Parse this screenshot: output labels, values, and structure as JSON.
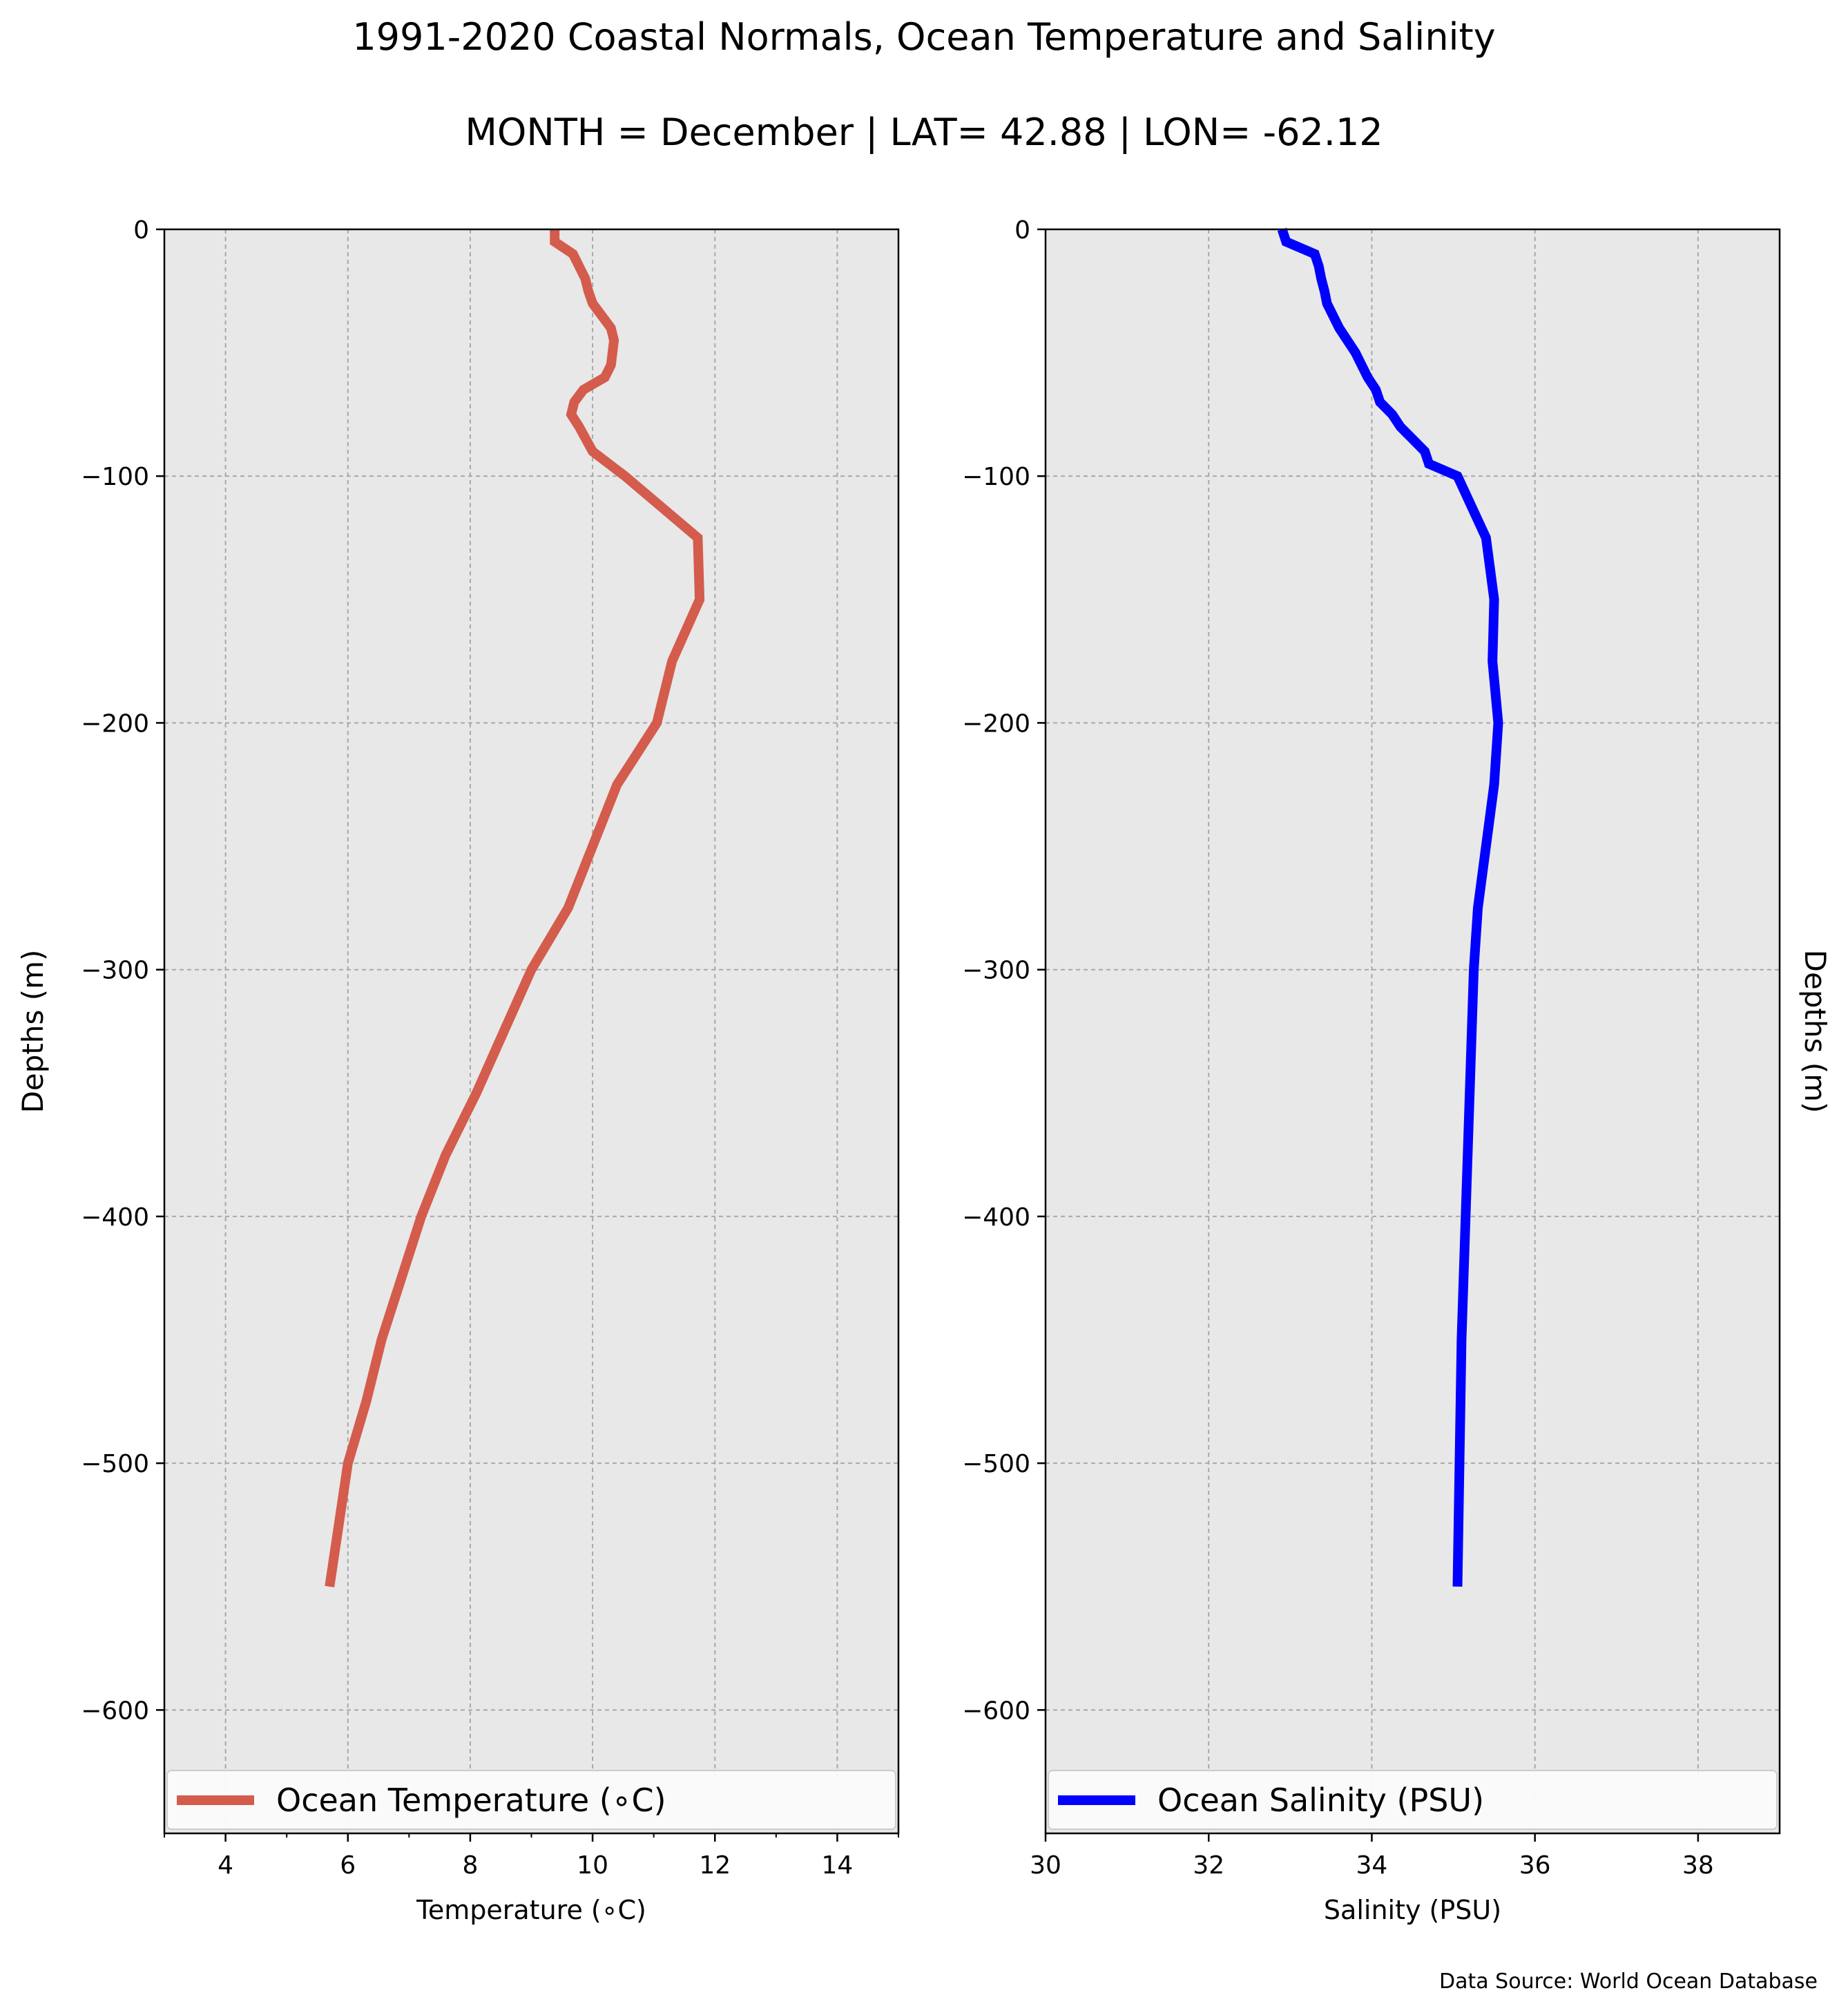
{
  "title": "1991-2020 Coastal Normals, Ocean Temperature and Salinity",
  "subtitle": "MONTH = December | LAT= 42.88 | LON= -62.12",
  "source": "Data Source: World Ocean Database",
  "chart_data": [
    {
      "type": "line",
      "xlabel": "Temperature (∘C)",
      "ylabel": "Depths (m)",
      "ylabel_side": "left",
      "xlim": [
        3,
        15
      ],
      "ylim": [
        -650,
        0
      ],
      "xticks": [
        4,
        6,
        8,
        10,
        12,
        14
      ],
      "xtick_labels": [
        "4",
        "6",
        "8",
        "10",
        "12",
        "14"
      ],
      "yticks": [
        0,
        -100,
        -200,
        -300,
        -400,
        -500,
        -600
      ],
      "ytick_labels": [
        "0",
        "−100",
        "−200",
        "−300",
        "−400",
        "−500",
        "−600"
      ],
      "grid": true,
      "legend": "bottom",
      "color": "#d45c4d",
      "series": [
        {
          "name": "Ocean Temperature (∘C)",
          "x": [
            9.38,
            9.38,
            9.68,
            9.78,
            9.88,
            9.93,
            10.0,
            10.3,
            10.35,
            10.3,
            10.2,
            9.85,
            9.7,
            9.65,
            9.78,
            10.0,
            10.53,
            11.72,
            11.75,
            11.3,
            11.05,
            10.4,
            10.0,
            9.6,
            9.0,
            8.55,
            8.1,
            7.6,
            7.2,
            6.55,
            6.3,
            6.0,
            5.7
          ],
          "y": [
            0,
            -5,
            -10,
            -15,
            -20,
            -25,
            -30,
            -40,
            -45,
            -55,
            -60,
            -65,
            -70,
            -75,
            -80,
            -90,
            -100,
            -125,
            -150,
            -175,
            -200,
            -225,
            -250,
            -275,
            -300,
            -325,
            -350,
            -375,
            -400,
            -450,
            -475,
            -500,
            -550
          ]
        }
      ]
    },
    {
      "type": "line",
      "xlabel": "Salinity (PSU)",
      "ylabel": "Depths (m)",
      "ylabel_side": "right",
      "xlim": [
        30,
        39
      ],
      "ylim": [
        -650,
        0
      ],
      "xticks": [
        30,
        32,
        34,
        36,
        38
      ],
      "xtick_labels": [
        "30",
        "32",
        "34",
        "36",
        "38"
      ],
      "yticks": [
        0,
        -100,
        -200,
        -300,
        -400,
        -500,
        -600
      ],
      "ytick_labels": [
        "0",
        "−100",
        "−200",
        "−300",
        "−400",
        "−500",
        "−600"
      ],
      "grid": true,
      "legend": "bottom",
      "color": "#0000ff",
      "series": [
        {
          "name": "Ocean Salinity (PSU)",
          "x": [
            32.9,
            32.95,
            33.3,
            33.35,
            33.38,
            33.42,
            33.45,
            33.6,
            33.8,
            33.95,
            34.05,
            34.1,
            34.25,
            34.35,
            34.5,
            34.65,
            34.7,
            35.05,
            35.4,
            35.5,
            35.48,
            35.55,
            35.5,
            35.4,
            35.3,
            35.25,
            35.2,
            35.15,
            35.1,
            35.05
          ],
          "y": [
            0,
            -5,
            -10,
            -15,
            -20,
            -25,
            -30,
            -40,
            -50,
            -60,
            -65,
            -70,
            -75,
            -80,
            -85,
            -90,
            -95,
            -100,
            -125,
            -150,
            -175,
            -200,
            -225,
            -250,
            -275,
            -300,
            -350,
            -400,
            -450,
            -550
          ]
        }
      ]
    }
  ]
}
